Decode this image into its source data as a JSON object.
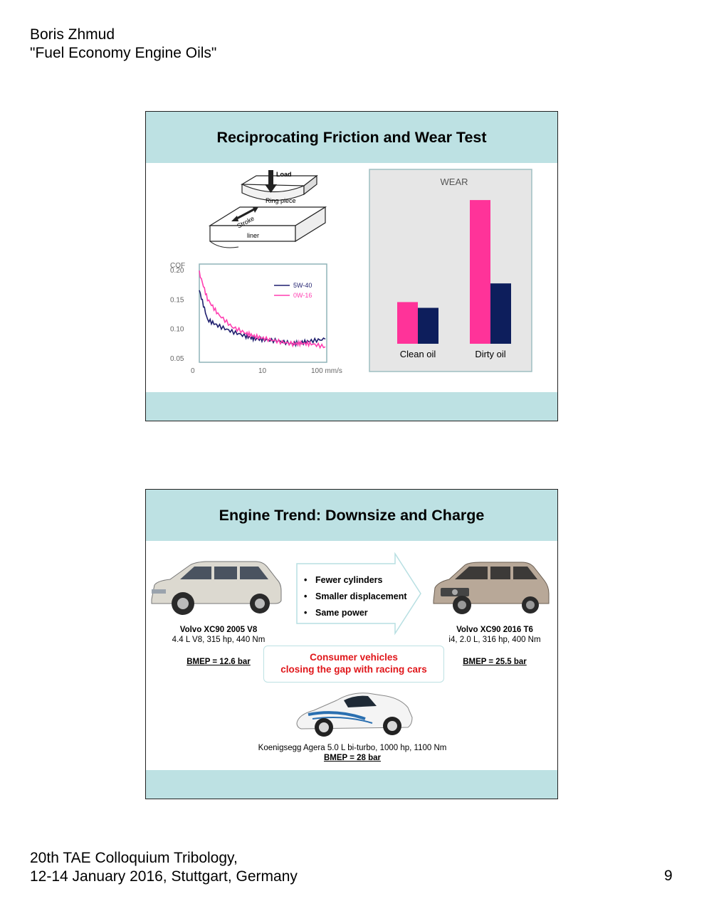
{
  "header": {
    "author": "Boris Zhmud",
    "title": "\"Fuel Economy Engine Oils\""
  },
  "footer": {
    "line1": "20th TAE Colloquium Tribology,",
    "line2": "12-14 January 2016, Stuttgart, Germany",
    "page_number": "9"
  },
  "slide1": {
    "title": "Reciprocating Friction and Wear Test",
    "diagram_labels": {
      "load": "Load",
      "ring_piece": "Ring piece",
      "stroke": "Stroke",
      "liner": "liner"
    }
  },
  "slide2": {
    "title": "Engine Trend: Downsize and Charge",
    "bullets": [
      "Fewer cylinders",
      "Smaller displacement",
      "Same power"
    ],
    "left_car": {
      "name": "Volvo XC90 2005 V8",
      "spec": "4.4 L V8, 315 hp, 440 Nm",
      "bmep": "BMEP = 12.6 bar"
    },
    "right_car": {
      "name": "Volvo XC90 2016 T6",
      "spec": "i4, 2.0 L, 316 hp, 400 Nm",
      "bmep": "BMEP = 25.5 bar"
    },
    "callout": {
      "line1": "Consumer vehicles",
      "line2": "closing the gap with racing cars"
    },
    "supercar": {
      "spec": "Koenigsegg Agera 5.0 L bi-turbo, 1000 hp, 1100 Nm",
      "bmep": "BMEP = 28 bar"
    }
  },
  "chart_data": [
    {
      "type": "line",
      "title": "",
      "ylabel": "COF",
      "xlabel": "mm/s",
      "x_tick_labels": [
        "0",
        "10",
        "100 mm/s"
      ],
      "y_tick_labels": [
        "0.20",
        "0.15",
        "0.10",
        "0.05"
      ],
      "ylim": [
        0.05,
        0.2
      ],
      "x_scale": "log",
      "legend_position": "top-right",
      "series": [
        {
          "name": "5W-40",
          "color": "#1f1f6e",
          "x": [
            0.2,
            0.3,
            0.5,
            1,
            2,
            3,
            5,
            10,
            20,
            30,
            50,
            100
          ],
          "values": [
            0.165,
            0.115,
            0.105,
            0.095,
            0.087,
            0.083,
            0.081,
            0.079,
            0.074,
            0.076,
            0.079,
            0.082
          ]
        },
        {
          "name": "0W-16",
          "color": "#ff3fb1",
          "x": [
            0.2,
            0.3,
            0.5,
            1,
            2,
            3,
            5,
            10,
            20,
            30,
            50,
            100
          ],
          "values": [
            0.195,
            0.15,
            0.125,
            0.103,
            0.092,
            0.087,
            0.083,
            0.078,
            0.074,
            0.075,
            0.074,
            0.069
          ]
        }
      ]
    },
    {
      "type": "bar",
      "title": "WEAR",
      "categories": [
        "Clean oil",
        "Dirty oil"
      ],
      "series": [
        {
          "color": "#ff3399",
          "values": [
            0.29,
            1.0
          ]
        },
        {
          "color": "#0d1e5c",
          "values": [
            0.25,
            0.42
          ]
        }
      ],
      "ylim": [
        0,
        1.05
      ],
      "grid": false,
      "legend": false
    }
  ]
}
